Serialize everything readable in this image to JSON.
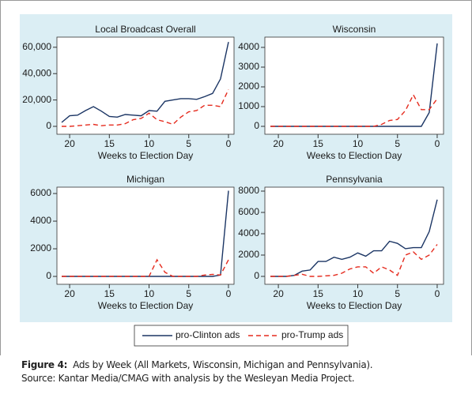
{
  "chart_data": [
    {
      "type": "line",
      "title": "Local Broadcast Overall",
      "xlabel": "Weeks to Election Day",
      "x": [
        21,
        20,
        19,
        18,
        17,
        16,
        15,
        14,
        13,
        12,
        11,
        10,
        9,
        8,
        7,
        6,
        5,
        4,
        3,
        2,
        1,
        0
      ],
      "xlim": [
        21.6,
        -0.7
      ],
      "xticks": [
        20,
        15,
        10,
        5,
        0
      ],
      "ylim": [
        -6000,
        67700
      ],
      "yticks": [
        0,
        {
          "value": 20000,
          "label": "20,000"
        },
        {
          "value": 40000,
          "label": "40,000"
        },
        {
          "value": 60000,
          "label": "60,000"
        }
      ],
      "series": [
        {
          "name": "pro-Clinton ads",
          "color": "#1b3564",
          "dashed": false,
          "values": [
            3000,
            8000,
            8500,
            12000,
            15000,
            11500,
            7500,
            7000,
            9000,
            8500,
            8000,
            12000,
            11500,
            19000,
            20000,
            21000,
            21000,
            20500,
            22500,
            25000,
            36000,
            64000
          ]
        },
        {
          "name": "pro-Trump ads",
          "color": "#e52b1e",
          "dashed": true,
          "values": [
            0,
            0,
            500,
            1000,
            1500,
            500,
            1000,
            1000,
            2000,
            5000,
            6000,
            10000,
            5000,
            3500,
            1500,
            7000,
            11000,
            12000,
            16000,
            16000,
            15000,
            28000
          ]
        }
      ]
    },
    {
      "type": "line",
      "title": "Wisconsin",
      "xlabel": "Weeks to Election Day",
      "x": [
        21,
        20,
        19,
        18,
        17,
        16,
        15,
        14,
        13,
        12,
        11,
        10,
        9,
        8,
        7,
        6,
        5,
        4,
        3,
        2,
        1,
        0
      ],
      "xlim": [
        21.7,
        -0.8
      ],
      "xticks": [
        20,
        15,
        10,
        5,
        0
      ],
      "ylim": [
        -400,
        4520
      ],
      "yticks": [
        0,
        1000,
        2000,
        3000,
        4000
      ],
      "series": [
        {
          "color": "#1b3564",
          "dashed": false,
          "values": [
            0,
            0,
            0,
            0,
            0,
            0,
            0,
            0,
            0,
            0,
            0,
            0,
            0,
            0,
            0,
            0,
            0,
            0,
            0,
            0,
            700,
            4200
          ]
        },
        {
          "color": "#e52b1e",
          "dashed": true,
          "values": [
            0,
            0,
            0,
            0,
            0,
            0,
            0,
            0,
            0,
            0,
            0,
            0,
            0,
            0,
            100,
            300,
            350,
            800,
            1600,
            850,
            850,
            1400
          ]
        }
      ]
    },
    {
      "type": "line",
      "title": "Michigan",
      "xlabel": "Weeks to Election Day",
      "x": [
        21,
        20,
        19,
        18,
        17,
        16,
        15,
        14,
        13,
        12,
        11,
        10,
        9,
        8,
        7,
        6,
        5,
        4,
        3,
        2,
        1,
        0
      ],
      "xlim": [
        21.6,
        -0.7
      ],
      "xticks": [
        20,
        15,
        10,
        5,
        0
      ],
      "ylim": [
        -570,
        6460
      ],
      "yticks": [
        0,
        2000,
        4000,
        6000
      ],
      "series": [
        {
          "color": "#1b3564",
          "dashed": false,
          "values": [
            0,
            0,
            0,
            0,
            0,
            0,
            0,
            0,
            0,
            0,
            0,
            0,
            0,
            0,
            0,
            0,
            0,
            0,
            0,
            0,
            100,
            6200
          ]
        },
        {
          "color": "#e52b1e",
          "dashed": true,
          "values": [
            0,
            0,
            0,
            0,
            0,
            0,
            0,
            0,
            0,
            0,
            0,
            0,
            1200,
            300,
            0,
            0,
            0,
            0,
            100,
            150,
            100,
            1200
          ]
        }
      ]
    },
    {
      "type": "line",
      "title": "Pennsylvania",
      "xlabel": "Weeks to Election Day",
      "x": [
        21,
        20,
        19,
        18,
        17,
        16,
        15,
        14,
        13,
        12,
        11,
        10,
        9,
        8,
        7,
        6,
        5,
        4,
        3,
        2,
        1,
        0
      ],
      "xlim": [
        21.7,
        -0.8
      ],
      "xticks": [
        20,
        15,
        10,
        5,
        0
      ],
      "ylim": [
        -740,
        8370
      ],
      "yticks": [
        0,
        2000,
        4000,
        6000,
        8000
      ],
      "series": [
        {
          "color": "#1b3564",
          "dashed": false,
          "values": [
            0,
            0,
            0,
            100,
            500,
            600,
            1400,
            1400,
            1800,
            1600,
            1800,
            2200,
            1900,
            2400,
            2400,
            3300,
            3100,
            2600,
            2700,
            2700,
            4200,
            7200
          ]
        },
        {
          "color": "#e52b1e",
          "dashed": true,
          "values": [
            0,
            0,
            0,
            100,
            200,
            0,
            0,
            50,
            100,
            300,
            700,
            900,
            900,
            300,
            900,
            600,
            100,
            2000,
            2300,
            1600,
            2000,
            3000
          ]
        }
      ]
    }
  ],
  "caption": {
    "label": "Figure 4:",
    "text": "Ads by Week (All Markets, Wisconsin, Michigan and Pennsylvania).",
    "source": "Source: Kantar Media/CMAG with analysis by the Wesleyan Media Project."
  }
}
